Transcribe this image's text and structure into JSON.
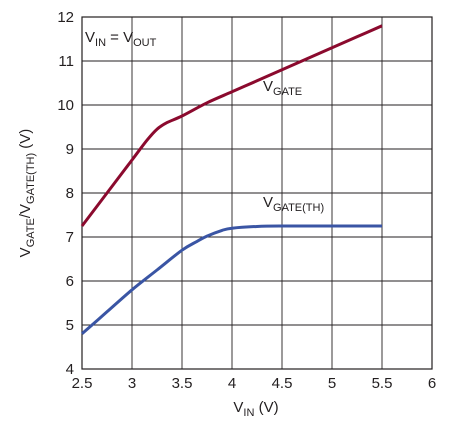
{
  "chart_data": {
    "type": "line",
    "xlabel": {
      "main": "V",
      "sub": "IN",
      "unit": " (V)"
    },
    "ylabel": {
      "main1": "V",
      "sub1": "GATE",
      "mid": "/V",
      "sub2": "GATE(TH)",
      "unit": " (V)"
    },
    "xlim": [
      2.5,
      6
    ],
    "ylim": [
      4,
      12
    ],
    "xticks": [
      2.5,
      3,
      3.5,
      4,
      4.5,
      5,
      5.5,
      6
    ],
    "xtick_labels": [
      "2.5",
      "3",
      "3.5",
      "4",
      "4.5",
      "5",
      "5.5",
      "6"
    ],
    "yticks": [
      4,
      5,
      6,
      7,
      8,
      9,
      10,
      11,
      12
    ],
    "ytick_labels": [
      "4",
      "5",
      "6",
      "7",
      "8",
      "9",
      "10",
      "11",
      "12"
    ],
    "grid": true,
    "condition": {
      "main1": "V",
      "sub1": "IN",
      "mid": " = V",
      "sub2": "OUT"
    },
    "series": [
      {
        "name": "VGATE",
        "label_main": "V",
        "label_sub": "GATE",
        "color": "#8b0a2e",
        "x": [
          2.5,
          2.75,
          3.0,
          3.15,
          3.25,
          3.35,
          3.5,
          3.75,
          4.0,
          4.25,
          4.5,
          4.75,
          5.0,
          5.25,
          5.5
        ],
        "y": [
          7.25,
          8.0,
          8.75,
          9.2,
          9.45,
          9.6,
          9.75,
          10.05,
          10.3,
          10.55,
          10.8,
          11.05,
          11.3,
          11.55,
          11.8
        ]
      },
      {
        "name": "VGATE(TH)",
        "label_main": "V",
        "label_sub": "GATE(TH)",
        "color": "#3a55a4",
        "x": [
          2.5,
          2.75,
          3.0,
          3.25,
          3.5,
          3.65,
          3.75,
          3.9,
          4.0,
          4.25,
          4.5,
          5.0,
          5.5
        ],
        "y": [
          4.8,
          5.3,
          5.8,
          6.25,
          6.7,
          6.9,
          7.02,
          7.15,
          7.2,
          7.24,
          7.25,
          7.25,
          7.25
        ]
      }
    ]
  }
}
